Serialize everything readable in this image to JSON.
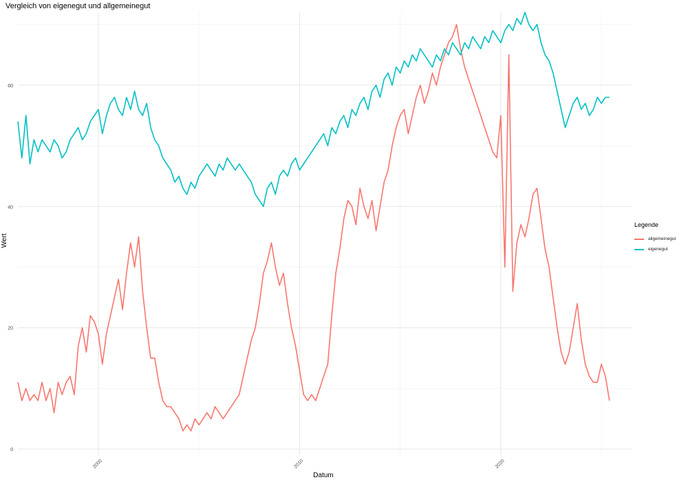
{
  "chart_data": {
    "type": "line",
    "title": "Vergleich von eigenegut und allgemeinegut",
    "xlabel": "Datum",
    "ylabel": "Wert",
    "xlim": [
      1996,
      2026.5
    ],
    "ylim": [
      -1,
      72
    ],
    "x_ticks": [
      2000,
      2010,
      2020
    ],
    "x_tick_labels": [
      "2000",
      "2010",
      "2020"
    ],
    "y_ticks": [
      0,
      20,
      40,
      60
    ],
    "y_tick_labels": [
      "0",
      "20",
      "40",
      "60"
    ],
    "grid": true,
    "legend": {
      "title": "Legende",
      "position": "right"
    },
    "series": [
      {
        "name": "allgemeinegut",
        "color": "#F8766D",
        "points": [
          [
            1996.0,
            11
          ],
          [
            1996.2,
            8
          ],
          [
            1996.4,
            10
          ],
          [
            1996.6,
            8
          ],
          [
            1996.8,
            9
          ],
          [
            1997.0,
            8
          ],
          [
            1997.2,
            11
          ],
          [
            1997.4,
            8
          ],
          [
            1997.6,
            10
          ],
          [
            1997.8,
            6
          ],
          [
            1998.0,
            11
          ],
          [
            1998.2,
            9
          ],
          [
            1998.4,
            11
          ],
          [
            1998.6,
            12
          ],
          [
            1998.8,
            9
          ],
          [
            1999.0,
            17
          ],
          [
            1999.2,
            20
          ],
          [
            1999.4,
            16
          ],
          [
            1999.6,
            22
          ],
          [
            1999.8,
            21
          ],
          [
            2000.0,
            19
          ],
          [
            2000.2,
            14
          ],
          [
            2000.4,
            19
          ],
          [
            2000.6,
            22
          ],
          [
            2000.8,
            25
          ],
          [
            2001.0,
            28
          ],
          [
            2001.2,
            23
          ],
          [
            2001.4,
            29
          ],
          [
            2001.6,
            34
          ],
          [
            2001.8,
            30
          ],
          [
            2002.0,
            35
          ],
          [
            2002.2,
            26
          ],
          [
            2002.4,
            20
          ],
          [
            2002.6,
            15
          ],
          [
            2002.8,
            15
          ],
          [
            2003.0,
            11
          ],
          [
            2003.2,
            8
          ],
          [
            2003.4,
            7
          ],
          [
            2003.6,
            7
          ],
          [
            2003.8,
            6
          ],
          [
            2004.0,
            5
          ],
          [
            2004.2,
            3
          ],
          [
            2004.4,
            4
          ],
          [
            2004.6,
            3
          ],
          [
            2004.8,
            5
          ],
          [
            2005.0,
            4
          ],
          [
            2005.2,
            5
          ],
          [
            2005.4,
            6
          ],
          [
            2005.6,
            5
          ],
          [
            2005.8,
            7
          ],
          [
            2006.0,
            6
          ],
          [
            2006.2,
            5
          ],
          [
            2006.4,
            6
          ],
          [
            2006.6,
            7
          ],
          [
            2006.8,
            8
          ],
          [
            2007.0,
            9
          ],
          [
            2007.2,
            12
          ],
          [
            2007.4,
            15
          ],
          [
            2007.6,
            18
          ],
          [
            2007.8,
            20
          ],
          [
            2008.0,
            24
          ],
          [
            2008.2,
            29
          ],
          [
            2008.4,
            31
          ],
          [
            2008.6,
            34
          ],
          [
            2008.8,
            30
          ],
          [
            2009.0,
            27
          ],
          [
            2009.2,
            29
          ],
          [
            2009.4,
            24
          ],
          [
            2009.6,
            20
          ],
          [
            2009.8,
            17
          ],
          [
            2010.0,
            13
          ],
          [
            2010.2,
            9
          ],
          [
            2010.4,
            8
          ],
          [
            2010.6,
            9
          ],
          [
            2010.8,
            8
          ],
          [
            2011.0,
            10
          ],
          [
            2011.2,
            12
          ],
          [
            2011.4,
            14
          ],
          [
            2011.6,
            22
          ],
          [
            2011.8,
            29
          ],
          [
            2012.0,
            33
          ],
          [
            2012.2,
            38
          ],
          [
            2012.4,
            41
          ],
          [
            2012.6,
            40
          ],
          [
            2012.8,
            37
          ],
          [
            2013.0,
            43
          ],
          [
            2013.2,
            40
          ],
          [
            2013.4,
            38
          ],
          [
            2013.6,
            41
          ],
          [
            2013.8,
            36
          ],
          [
            2014.0,
            40
          ],
          [
            2014.2,
            44
          ],
          [
            2014.4,
            46
          ],
          [
            2014.6,
            50
          ],
          [
            2014.8,
            53
          ],
          [
            2015.0,
            55
          ],
          [
            2015.2,
            56
          ],
          [
            2015.4,
            52
          ],
          [
            2015.6,
            55
          ],
          [
            2015.8,
            58
          ],
          [
            2016.0,
            60
          ],
          [
            2016.2,
            57
          ],
          [
            2016.4,
            59
          ],
          [
            2016.6,
            62
          ],
          [
            2016.8,
            60
          ],
          [
            2017.0,
            63
          ],
          [
            2017.2,
            65
          ],
          [
            2017.4,
            67
          ],
          [
            2017.6,
            68
          ],
          [
            2017.8,
            70
          ],
          [
            2018.0,
            66
          ],
          [
            2018.2,
            63
          ],
          [
            2018.4,
            61
          ],
          [
            2018.6,
            59
          ],
          [
            2018.8,
            57
          ],
          [
            2019.0,
            55
          ],
          [
            2019.2,
            53
          ],
          [
            2019.4,
            51
          ],
          [
            2019.6,
            49
          ],
          [
            2019.8,
            48
          ],
          [
            2020.0,
            55
          ],
          [
            2020.2,
            30
          ],
          [
            2020.4,
            65
          ],
          [
            2020.6,
            26
          ],
          [
            2020.8,
            34
          ],
          [
            2021.0,
            37
          ],
          [
            2021.2,
            35
          ],
          [
            2021.4,
            38
          ],
          [
            2021.6,
            42
          ],
          [
            2021.8,
            43
          ],
          [
            2022.0,
            38
          ],
          [
            2022.2,
            33
          ],
          [
            2022.4,
            30
          ],
          [
            2022.6,
            25
          ],
          [
            2022.8,
            20
          ],
          [
            2023.0,
            16
          ],
          [
            2023.2,
            14
          ],
          [
            2023.4,
            16
          ],
          [
            2023.6,
            20
          ],
          [
            2023.8,
            24
          ],
          [
            2024.0,
            18
          ],
          [
            2024.2,
            14
          ],
          [
            2024.4,
            12
          ],
          [
            2024.6,
            11
          ],
          [
            2024.8,
            11
          ],
          [
            2025.0,
            14
          ],
          [
            2025.2,
            12
          ],
          [
            2025.4,
            8
          ]
        ]
      },
      {
        "name": "eigenegut",
        "color": "#00BFC4",
        "points": [
          [
            1996.0,
            54
          ],
          [
            1996.2,
            48
          ],
          [
            1996.4,
            55
          ],
          [
            1996.6,
            47
          ],
          [
            1996.8,
            51
          ],
          [
            1997.0,
            49
          ],
          [
            1997.2,
            51
          ],
          [
            1997.4,
            50
          ],
          [
            1997.6,
            49
          ],
          [
            1997.8,
            51
          ],
          [
            1998.0,
            50
          ],
          [
            1998.2,
            48
          ],
          [
            1998.4,
            49
          ],
          [
            1998.6,
            51
          ],
          [
            1998.8,
            52
          ],
          [
            1999.0,
            53
          ],
          [
            1999.2,
            51
          ],
          [
            1999.4,
            52
          ],
          [
            1999.6,
            54
          ],
          [
            1999.8,
            55
          ],
          [
            2000.0,
            56
          ],
          [
            2000.2,
            52
          ],
          [
            2000.4,
            55
          ],
          [
            2000.6,
            57
          ],
          [
            2000.8,
            58
          ],
          [
            2001.0,
            56
          ],
          [
            2001.2,
            55
          ],
          [
            2001.4,
            58
          ],
          [
            2001.6,
            56
          ],
          [
            2001.8,
            59
          ],
          [
            2002.0,
            56
          ],
          [
            2002.2,
            55
          ],
          [
            2002.4,
            57
          ],
          [
            2002.6,
            53
          ],
          [
            2002.8,
            51
          ],
          [
            2003.0,
            50
          ],
          [
            2003.2,
            48
          ],
          [
            2003.4,
            47
          ],
          [
            2003.6,
            46
          ],
          [
            2003.8,
            44
          ],
          [
            2004.0,
            45
          ],
          [
            2004.2,
            43
          ],
          [
            2004.4,
            42
          ],
          [
            2004.6,
            44
          ],
          [
            2004.8,
            43
          ],
          [
            2005.0,
            45
          ],
          [
            2005.2,
            46
          ],
          [
            2005.4,
            47
          ],
          [
            2005.6,
            46
          ],
          [
            2005.8,
            45
          ],
          [
            2006.0,
            47
          ],
          [
            2006.2,
            46
          ],
          [
            2006.4,
            48
          ],
          [
            2006.6,
            47
          ],
          [
            2006.8,
            46
          ],
          [
            2007.0,
            47
          ],
          [
            2007.2,
            46
          ],
          [
            2007.4,
            45
          ],
          [
            2007.6,
            44
          ],
          [
            2007.8,
            42
          ],
          [
            2008.0,
            41
          ],
          [
            2008.2,
            40
          ],
          [
            2008.4,
            43
          ],
          [
            2008.6,
            44
          ],
          [
            2008.8,
            42
          ],
          [
            2009.0,
            45
          ],
          [
            2009.2,
            46
          ],
          [
            2009.4,
            45
          ],
          [
            2009.6,
            47
          ],
          [
            2009.8,
            48
          ],
          [
            2010.0,
            46
          ],
          [
            2010.2,
            47
          ],
          [
            2010.4,
            48
          ],
          [
            2010.6,
            49
          ],
          [
            2010.8,
            50
          ],
          [
            2011.0,
            51
          ],
          [
            2011.2,
            52
          ],
          [
            2011.4,
            50
          ],
          [
            2011.6,
            53
          ],
          [
            2011.8,
            52
          ],
          [
            2012.0,
            54
          ],
          [
            2012.2,
            55
          ],
          [
            2012.4,
            53
          ],
          [
            2012.6,
            56
          ],
          [
            2012.8,
            55
          ],
          [
            2013.0,
            57
          ],
          [
            2013.2,
            58
          ],
          [
            2013.4,
            56
          ],
          [
            2013.6,
            59
          ],
          [
            2013.8,
            60
          ],
          [
            2014.0,
            58
          ],
          [
            2014.2,
            61
          ],
          [
            2014.4,
            62
          ],
          [
            2014.6,
            60
          ],
          [
            2014.8,
            63
          ],
          [
            2015.0,
            62
          ],
          [
            2015.2,
            64
          ],
          [
            2015.4,
            63
          ],
          [
            2015.6,
            65
          ],
          [
            2015.8,
            64
          ],
          [
            2016.0,
            66
          ],
          [
            2016.2,
            65
          ],
          [
            2016.4,
            64
          ],
          [
            2016.6,
            63
          ],
          [
            2016.8,
            65
          ],
          [
            2017.0,
            64
          ],
          [
            2017.2,
            66
          ],
          [
            2017.4,
            65
          ],
          [
            2017.6,
            67
          ],
          [
            2017.8,
            66
          ],
          [
            2018.0,
            65
          ],
          [
            2018.2,
            67
          ],
          [
            2018.4,
            66
          ],
          [
            2018.6,
            68
          ],
          [
            2018.8,
            67
          ],
          [
            2019.0,
            66
          ],
          [
            2019.2,
            68
          ],
          [
            2019.4,
            67
          ],
          [
            2019.6,
            69
          ],
          [
            2019.8,
            68
          ],
          [
            2020.0,
            67
          ],
          [
            2020.2,
            69
          ],
          [
            2020.4,
            70
          ],
          [
            2020.6,
            69
          ],
          [
            2020.8,
            71
          ],
          [
            2021.0,
            70
          ],
          [
            2021.2,
            72
          ],
          [
            2021.4,
            70
          ],
          [
            2021.6,
            69
          ],
          [
            2021.8,
            70
          ],
          [
            2022.0,
            67
          ],
          [
            2022.2,
            65
          ],
          [
            2022.4,
            64
          ],
          [
            2022.6,
            62
          ],
          [
            2022.8,
            59
          ],
          [
            2023.0,
            56
          ],
          [
            2023.2,
            53
          ],
          [
            2023.4,
            55
          ],
          [
            2023.6,
            57
          ],
          [
            2023.8,
            58
          ],
          [
            2024.0,
            56
          ],
          [
            2024.2,
            57
          ],
          [
            2024.4,
            55
          ],
          [
            2024.6,
            56
          ],
          [
            2024.8,
            58
          ],
          [
            2025.0,
            57
          ],
          [
            2025.2,
            58
          ],
          [
            2025.4,
            58
          ]
        ]
      }
    ]
  }
}
